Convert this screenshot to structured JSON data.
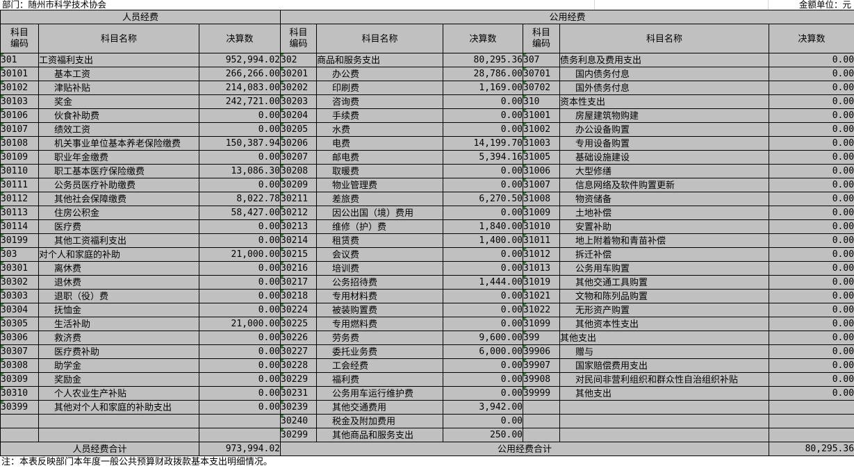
{
  "meta": {
    "department_label": "部门：随州市科学技术协会",
    "unit_label": "金额单位：元",
    "footnote": "注：本表反映部门本年度一般公共预算财政拨款基本支出明细情况。"
  },
  "colors": {
    "cell_gray": "#c0c0c0",
    "value_cell_white": "#ffffff",
    "grid_black": "#000000",
    "indicator_green": "#1f8a1f"
  },
  "table": {
    "section_headers": {
      "personnel": "人员经费",
      "public": "公用经费"
    },
    "column_headers": {
      "code": "科目编码",
      "name": "科目名称",
      "value": "决算数"
    },
    "totals": {
      "personnel_label": "人员经费合计",
      "personnel_value": "973,994.02",
      "public_label": "公用经费合计",
      "public_value": "80,295.36"
    },
    "sections": [
      {
        "rows": [
          {
            "c": "301",
            "n": "工资福利支出",
            "v": "952,994.02",
            "s": 0
          },
          {
            "c": "30101",
            "n": "基本工资",
            "v": "266,266.00",
            "s": 1
          },
          {
            "c": "30102",
            "n": "津贴补贴",
            "v": "214,083.00",
            "s": 1
          },
          {
            "c": "30103",
            "n": "奖金",
            "v": "242,721.00",
            "s": 1
          },
          {
            "c": "30106",
            "n": "伙食补助费",
            "v": "0.00",
            "s": 1
          },
          {
            "c": "30107",
            "n": "绩效工资",
            "v": "0.00",
            "s": 1
          },
          {
            "c": "30108",
            "n": "机关事业单位基本养老保险缴费",
            "v": "150,387.94",
            "s": 1
          },
          {
            "c": "30109",
            "n": "职业年金缴费",
            "v": "0.00",
            "s": 1
          },
          {
            "c": "30110",
            "n": "职工基本医疗保险缴费",
            "v": "13,086.30",
            "s": 1
          },
          {
            "c": "30111",
            "n": "公务员医疗补助缴费",
            "v": "0.00",
            "s": 1
          },
          {
            "c": "30112",
            "n": "其他社会保障缴费",
            "v": "8,022.78",
            "s": 1
          },
          {
            "c": "30113",
            "n": "住房公积金",
            "v": "58,427.00",
            "s": 1
          },
          {
            "c": "30114",
            "n": "医疗费",
            "v": "0.00",
            "s": 1
          },
          {
            "c": "30199",
            "n": "其他工资福利支出",
            "v": "0.00",
            "s": 1
          },
          {
            "c": "303",
            "n": "对个人和家庭的补助",
            "v": "21,000.00",
            "s": 0
          },
          {
            "c": "30301",
            "n": "离休费",
            "v": "0.00",
            "s": 1
          },
          {
            "c": "30302",
            "n": "退休费",
            "v": "0.00",
            "s": 1
          },
          {
            "c": "30303",
            "n": "退职（役）费",
            "v": "0.00",
            "s": 1
          },
          {
            "c": "30304",
            "n": "抚恤金",
            "v": "0.00",
            "s": 1
          },
          {
            "c": "30305",
            "n": "生活补助",
            "v": "21,000.00",
            "s": 1
          },
          {
            "c": "30306",
            "n": "救济费",
            "v": "0.00",
            "s": 1
          },
          {
            "c": "30307",
            "n": "医疗费补助",
            "v": "0.00",
            "s": 1
          },
          {
            "c": "30308",
            "n": "助学金",
            "v": "0.00",
            "s": 1
          },
          {
            "c": "30309",
            "n": "奖励金",
            "v": "0.00",
            "s": 1
          },
          {
            "c": "30310",
            "n": "个人农业生产补贴",
            "v": "0.00",
            "s": 1
          },
          {
            "c": "30399",
            "n": "其他对个人和家庭的补助支出",
            "v": "0.00",
            "s": 1
          },
          {
            "c": "",
            "n": "",
            "v": "",
            "s": 1
          },
          {
            "c": "",
            "n": "",
            "v": "",
            "s": 1
          }
        ]
      },
      {
        "rows": [
          {
            "c": "302",
            "n": "商品和服务支出",
            "v": "80,295.36",
            "s": 0
          },
          {
            "c": "30201",
            "n": "办公费",
            "v": "28,786.00",
            "s": 1
          },
          {
            "c": "30202",
            "n": "印刷费",
            "v": "1,169.00",
            "s": 1
          },
          {
            "c": "30203",
            "n": "咨询费",
            "v": "0.00",
            "s": 1
          },
          {
            "c": "30204",
            "n": "手续费",
            "v": "0.00",
            "s": 1
          },
          {
            "c": "30205",
            "n": "水费",
            "v": "0.00",
            "s": 1
          },
          {
            "c": "30206",
            "n": "电费",
            "v": "14,199.70",
            "s": 1
          },
          {
            "c": "30207",
            "n": "邮电费",
            "v": "5,394.16",
            "s": 1
          },
          {
            "c": "30208",
            "n": "取暖费",
            "v": "0.00",
            "s": 1
          },
          {
            "c": "30209",
            "n": "物业管理费",
            "v": "0.00",
            "s": 1
          },
          {
            "c": "30211",
            "n": "差旅费",
            "v": "6,270.50",
            "s": 1
          },
          {
            "c": "30212",
            "n": "因公出国（境）费用",
            "v": "0.00",
            "s": 1
          },
          {
            "c": "30213",
            "n": "维修（护）费",
            "v": "1,840.00",
            "s": 1
          },
          {
            "c": "30214",
            "n": "租赁费",
            "v": "1,400.00",
            "s": 1
          },
          {
            "c": "30215",
            "n": "会议费",
            "v": "0.00",
            "s": 1
          },
          {
            "c": "30216",
            "n": "培训费",
            "v": "0.00",
            "s": 1
          },
          {
            "c": "30217",
            "n": "公务招待费",
            "v": "1,444.00",
            "s": 1
          },
          {
            "c": "30218",
            "n": "专用材料费",
            "v": "0.00",
            "s": 1
          },
          {
            "c": "30224",
            "n": "被装购置费",
            "v": "0.00",
            "s": 1
          },
          {
            "c": "30225",
            "n": "专用燃料费",
            "v": "0.00",
            "s": 1
          },
          {
            "c": "30226",
            "n": "劳务费",
            "v": "9,600.00",
            "s": 1
          },
          {
            "c": "30227",
            "n": "委托业务费",
            "v": "6,000.00",
            "s": 1
          },
          {
            "c": "30228",
            "n": "工会经费",
            "v": "0.00",
            "s": 1
          },
          {
            "c": "30229",
            "n": "福利费",
            "v": "0.00",
            "s": 1
          },
          {
            "c": "30231",
            "n": "公务用车运行维护费",
            "v": "0.00",
            "s": 1
          },
          {
            "c": "30239",
            "n": "其他交通费用",
            "v": "3,942.00",
            "s": 1
          },
          {
            "c": "30240",
            "n": "税金及附加费用",
            "v": "0.00",
            "s": 1
          },
          {
            "c": "30299",
            "n": "其他商品和服务支出",
            "v": "250.00",
            "s": 1
          }
        ]
      },
      {
        "rows": [
          {
            "c": "307",
            "n": "债务利息及费用支出",
            "v": "0.00",
            "s": 0
          },
          {
            "c": "30701",
            "n": "国内债务付息",
            "v": "0.00",
            "s": 1
          },
          {
            "c": "30702",
            "n": "国外债务付息",
            "v": "0.00",
            "s": 1
          },
          {
            "c": "310",
            "n": "资本性支出",
            "v": "0.00",
            "s": 0
          },
          {
            "c": "31001",
            "n": "房屋建筑物购建",
            "v": "0.00",
            "s": 1
          },
          {
            "c": "31002",
            "n": "办公设备购置",
            "v": "0.00",
            "s": 1
          },
          {
            "c": "31003",
            "n": "专用设备购置",
            "v": "0.00",
            "s": 1
          },
          {
            "c": "31005",
            "n": "基础设施建设",
            "v": "0.00",
            "s": 1
          },
          {
            "c": "31006",
            "n": "大型修缮",
            "v": "0.00",
            "s": 1
          },
          {
            "c": "31007",
            "n": "信息网络及软件购置更新",
            "v": "0.00",
            "s": 1
          },
          {
            "c": "31008",
            "n": "物资储备",
            "v": "0.00",
            "s": 1
          },
          {
            "c": "31009",
            "n": "土地补偿",
            "v": "0.00",
            "s": 1
          },
          {
            "c": "31010",
            "n": "安置补助",
            "v": "0.00",
            "s": 1
          },
          {
            "c": "31011",
            "n": "地上附着物和青苗补偿",
            "v": "0.00",
            "s": 1
          },
          {
            "c": "31012",
            "n": "拆迁补偿",
            "v": "0.00",
            "s": 1
          },
          {
            "c": "31013",
            "n": "公务用车购置",
            "v": "0.00",
            "s": 1
          },
          {
            "c": "31019",
            "n": "其他交通工具购置",
            "v": "0.00",
            "s": 1
          },
          {
            "c": "31021",
            "n": "文物和陈列品购置",
            "v": "0.00",
            "s": 1
          },
          {
            "c": "31022",
            "n": "无形资产购置",
            "v": "0.00",
            "s": 1
          },
          {
            "c": "31099",
            "n": "其他资本性支出",
            "v": "0.00",
            "s": 1
          },
          {
            "c": "399",
            "n": "其他支出",
            "v": "0.00",
            "s": 0
          },
          {
            "c": "39906",
            "n": "赠与",
            "v": "0.00",
            "s": 1
          },
          {
            "c": "39907",
            "n": "国家赔偿费用支出",
            "v": "0.00",
            "s": 1
          },
          {
            "c": "39908",
            "n": "对民间非营利组织和群众性自治组织补贴",
            "v": "0.00",
            "s": 1
          },
          {
            "c": "39999",
            "n": "其他支出",
            "v": "0.00",
            "s": 1
          },
          {
            "c": "",
            "n": "",
            "v": "",
            "s": 1
          },
          {
            "c": "",
            "n": "",
            "v": "",
            "s": 1
          },
          {
            "c": "",
            "n": "",
            "v": "",
            "s": 1
          }
        ]
      }
    ]
  }
}
